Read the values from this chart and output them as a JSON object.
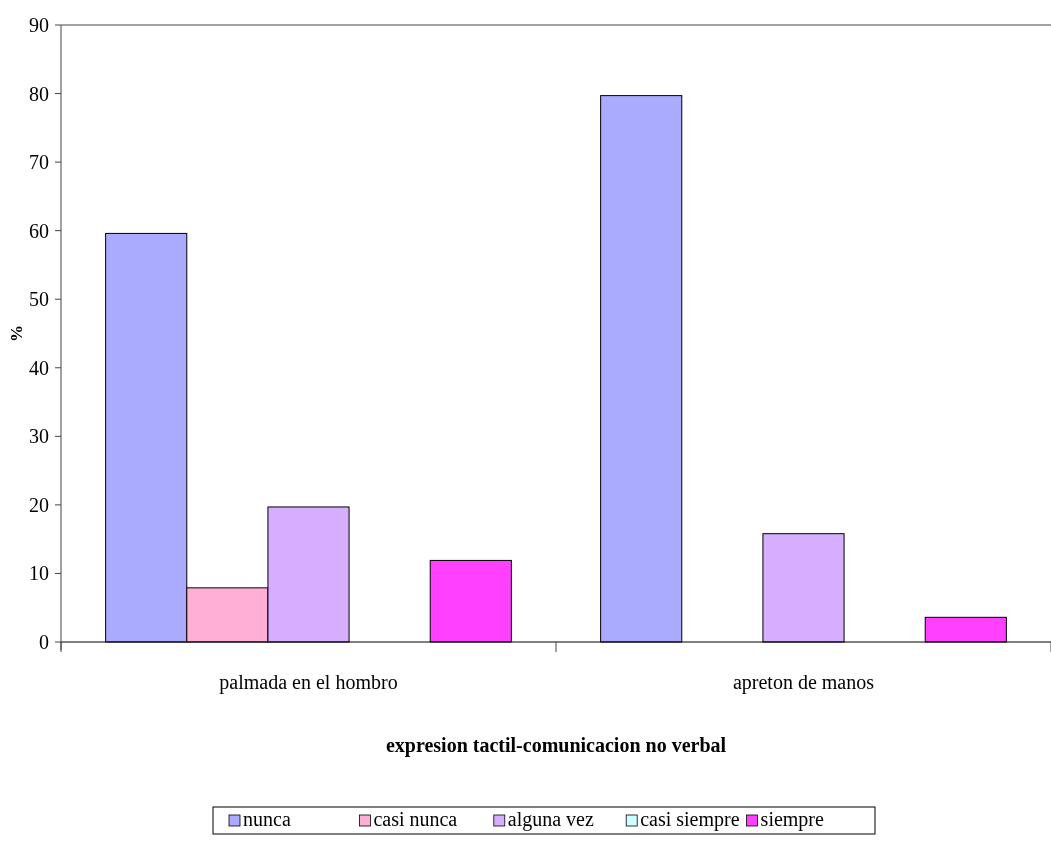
{
  "chart_data": {
    "type": "bar",
    "xlabel": "expresion tactil-comunicacion no verbal",
    "ylabel": "%",
    "categories": [
      "palmada en el hombro",
      "apreton de manos"
    ],
    "series": [
      {
        "name": "nunca",
        "color": "#aaaaff",
        "values": [
          59.6,
          79.7
        ]
      },
      {
        "name": "casi nunca",
        "color": "#ffaed5",
        "values": [
          7.9,
          0
        ]
      },
      {
        "name": "alguna vez",
        "color": "#d6aeff",
        "values": [
          19.7,
          15.8
        ]
      },
      {
        "name": "casi siempre",
        "color": "#ccffff",
        "values": [
          0,
          0
        ]
      },
      {
        "name": "siempre",
        "color": "#ff40ff",
        "values": [
          11.9,
          3.6
        ]
      }
    ],
    "ylim": [
      0,
      90
    ],
    "yticks": [
      0,
      10,
      20,
      30,
      40,
      50,
      60,
      70,
      80,
      90
    ],
    "legend": "bottom"
  }
}
